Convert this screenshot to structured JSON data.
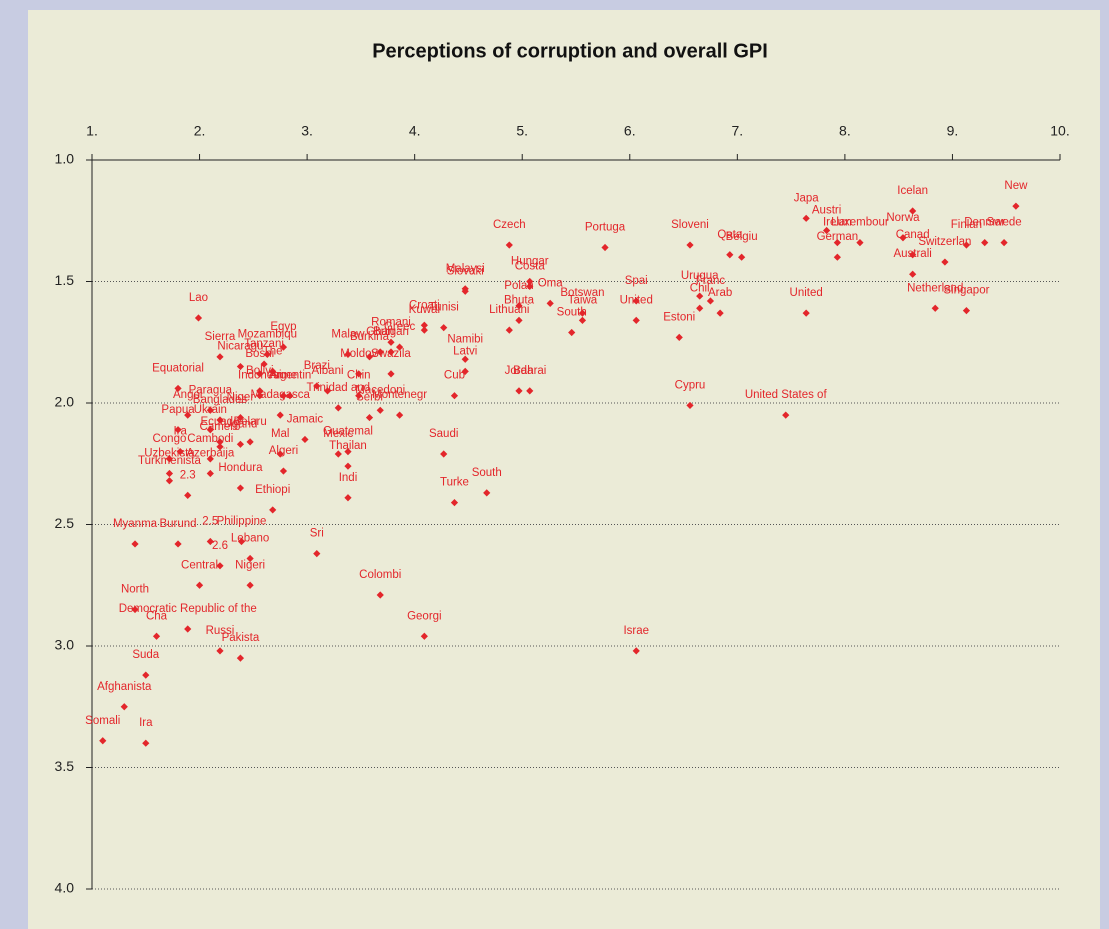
{
  "chart_data": {
    "type": "scatter",
    "title": "Perceptions of corruption and overall GPI",
    "color": "#e3262b",
    "x_axis_position": "top",
    "y_reversed": true,
    "grid": true,
    "xlim": [
      1,
      10
    ],
    "xticks": [
      {
        "value": 1,
        "label": "1."
      },
      {
        "value": 2,
        "label": "2."
      },
      {
        "value": 3,
        "label": "3."
      },
      {
        "value": 4,
        "label": "4."
      },
      {
        "value": 5,
        "label": "5."
      },
      {
        "value": 6,
        "label": "6."
      },
      {
        "value": 7,
        "label": "7."
      },
      {
        "value": 8,
        "label": "8."
      },
      {
        "value": 9,
        "label": "9."
      },
      {
        "value": 10,
        "label": "10."
      }
    ],
    "ylim": [
      1,
      4
    ],
    "yticks": [
      {
        "value": 1,
        "label": "1.0"
      },
      {
        "value": 1.5,
        "label": "1.5"
      },
      {
        "value": 2,
        "label": "2.0"
      },
      {
        "value": 2.5,
        "label": "2.5"
      },
      {
        "value": 3,
        "label": "3.0"
      },
      {
        "value": 3.5,
        "label": "3.5"
      },
      {
        "value": 4,
        "label": "4.0"
      }
    ],
    "labels": [
      "Icelan",
      "New",
      "Japa",
      "Austri",
      "Irelan",
      "Luxembour",
      "German",
      "Norwa",
      "Canad",
      "Finlan",
      "Denmar",
      "Swede",
      "Switzerlan",
      "Australi",
      "Netherland",
      "Singapor",
      "Belgiu",
      "Qata",
      "Sloveni",
      "Portuga",
      "Czech",
      "Hungar",
      "Malaysi",
      "Slovaki",
      "Costa",
      "Oma",
      "Polan",
      "Lithuani",
      "Bhuta",
      "Botswan",
      "Taiwa",
      "South",
      "Spai",
      "Urugua",
      "Chil",
      "Franc",
      "Arab",
      "United",
      "Estoni",
      "United",
      "Cypru",
      "United States of",
      "Israe",
      "Georgi",
      "Colombi",
      "Sri",
      "Turke",
      "South",
      "Saudi",
      "Indi",
      "Thailan",
      "Guatemal",
      "Mexic",
      "Cub",
      "Jorda",
      "Bahrai",
      "Latvi",
      "Namibi",
      "Tunisi",
      "Kuwai",
      "Croati",
      "Romani",
      "Bulgari",
      "Ghan",
      "Greec",
      "Swazila",
      "Macedoni",
      "Montenegr",
      "Serbi",
      "Chin",
      "Trinidad and",
      "Malaw",
      "Burkina",
      "Moldov",
      "Albani",
      "Brazi",
      "Egyp",
      "Mozambiqu",
      "Tanzani",
      "Lao",
      "Sierra",
      "Nicaragu",
      "Bosni",
      "The",
      "Indonesi",
      "Arme",
      "Argentin",
      "Equatorial",
      "Paragua",
      "Angol",
      "Banglades",
      "Niger",
      "Bolivi",
      "Madagasca",
      "Papua",
      "Ukrain",
      "Russi",
      "Pakista",
      "Congo",
      "Ira",
      "Uzbekista",
      "Turkmenista",
      "Camero",
      "Ecuado",
      "Ugand",
      "Belaru",
      "Cambodi",
      "Azerbaija",
      "Hondura",
      "Mal",
      "Algeri",
      "Ethiopi",
      "Myanma",
      "Burund",
      "Philippine",
      "Lebano",
      "Nigeri",
      "Central",
      "North",
      "Cha",
      "Democratic Republic of the",
      "Suda",
      "Afghanista",
      "Somali",
      "Ira",
      "2.3",
      "2.5",
      "2.6",
      "Jamaic"
    ],
    "x": [
      8.63,
      9.59,
      7.64,
      7.83,
      7.93,
      8.14,
      7.93,
      8.54,
      8.63,
      9.13,
      9.3,
      9.48,
      8.93,
      8.63,
      8.84,
      9.13,
      7.04,
      6.93,
      6.56,
      5.77,
      4.88,
      5.07,
      4.47,
      4.47,
      5.07,
      5.26,
      4.97,
      4.88,
      4.97,
      5.56,
      5.56,
      5.46,
      6.06,
      6.65,
      6.65,
      6.75,
      6.84,
      6.06,
      6.46,
      7.64,
      6.56,
      7.45,
      6.06,
      4.09,
      3.68,
      3.09,
      4.37,
      4.67,
      4.27,
      3.38,
      3.38,
      3.38,
      3.29,
      4.37,
      4.97,
      5.07,
      4.47,
      4.47,
      4.27,
      4.09,
      4.09,
      3.78,
      3.78,
      3.68,
      3.86,
      3.78,
      3.68,
      3.86,
      3.58,
      3.48,
      3.29,
      3.38,
      3.58,
      3.48,
      3.19,
      3.09,
      2.78,
      2.63,
      2.6,
      1.99,
      2.19,
      2.38,
      2.56,
      2.68,
      2.56,
      2.78,
      2.84,
      1.8,
      2.1,
      1.89,
      2.19,
      2.38,
      2.56,
      2.75,
      1.8,
      2.1,
      2.19,
      2.38,
      1.72,
      1.82,
      1.72,
      1.72,
      2.19,
      2.19,
      2.38,
      2.47,
      2.1,
      2.1,
      2.38,
      2.75,
      2.78,
      2.68,
      1.4,
      1.8,
      2.39,
      2.47,
      2.47,
      2.0,
      1.4,
      1.6,
      1.89,
      1.5,
      1.3,
      1.1,
      1.5,
      1.89,
      2.1,
      2.19,
      2.98
    ],
    "values": [
      1.21,
      1.19,
      1.24,
      1.29,
      1.34,
      1.34,
      1.4,
      1.32,
      1.39,
      1.35,
      1.34,
      1.34,
      1.42,
      1.47,
      1.61,
      1.62,
      1.4,
      1.39,
      1.35,
      1.36,
      1.35,
      1.5,
      1.53,
      1.54,
      1.52,
      1.59,
      1.6,
      1.7,
      1.66,
      1.63,
      1.66,
      1.71,
      1.58,
      1.56,
      1.61,
      1.58,
      1.63,
      1.66,
      1.73,
      1.63,
      2.01,
      2.05,
      3.02,
      2.96,
      2.79,
      2.62,
      2.41,
      2.37,
      2.21,
      2.39,
      2.26,
      2.2,
      2.21,
      1.97,
      1.95,
      1.95,
      1.87,
      1.82,
      1.69,
      1.7,
      1.68,
      1.75,
      1.79,
      1.79,
      1.77,
      1.88,
      2.03,
      2.05,
      2.06,
      1.97,
      2.02,
      1.8,
      1.81,
      1.88,
      1.95,
      1.93,
      1.77,
      1.8,
      1.84,
      1.65,
      1.81,
      1.85,
      1.88,
      1.87,
      1.97,
      1.97,
      1.97,
      1.94,
      2.03,
      2.05,
      2.07,
      2.06,
      1.95,
      2.05,
      2.11,
      2.11,
      3.02,
      3.05,
      2.23,
      2.2,
      2.29,
      2.32,
      2.18,
      2.16,
      2.17,
      2.16,
      2.23,
      2.29,
      2.35,
      2.21,
      2.28,
      2.44,
      2.58,
      2.58,
      2.57,
      2.64,
      2.75,
      2.75,
      2.85,
      2.96,
      2.93,
      3.12,
      3.25,
      3.39,
      3.4,
      2.38,
      2.57,
      2.67,
      2.15
    ]
  }
}
